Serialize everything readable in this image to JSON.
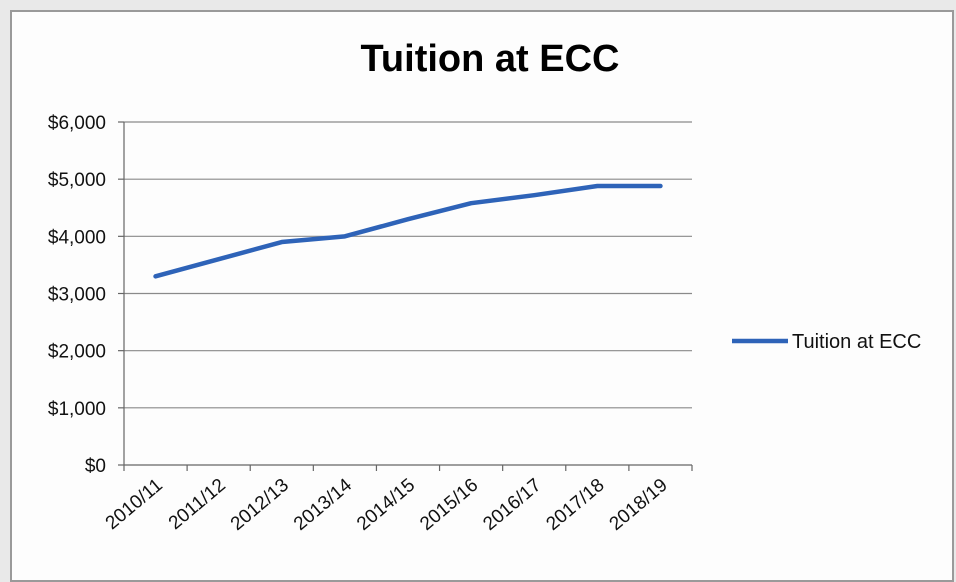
{
  "chart_data": {
    "type": "line",
    "title": "Tuition at ECC",
    "categories": [
      "2010/11",
      "2011/12",
      "2012/13",
      "2013/14",
      "2014/15",
      "2015/16",
      "2016/17",
      "2017/18",
      "2018/19"
    ],
    "series": [
      {
        "name": "Tuition at ECC",
        "values": [
          3300,
          3600,
          3900,
          4000,
          4300,
          4580,
          4720,
          4880,
          4880
        ]
      }
    ],
    "ylim": [
      0,
      6000
    ],
    "yticks": [
      0,
      1000,
      2000,
      3000,
      4000,
      5000,
      6000
    ],
    "ytick_labels": [
      "$0",
      "$1,000",
      "$2,000",
      "$3,000",
      "$4,000",
      "$5,000",
      "$6,000"
    ],
    "xlabel": "",
    "ylabel": "",
    "grid": true,
    "legend": "right",
    "colors": {
      "series": "#2e63b8",
      "grid": "#8a8a8a",
      "axis": "#666666"
    }
  }
}
